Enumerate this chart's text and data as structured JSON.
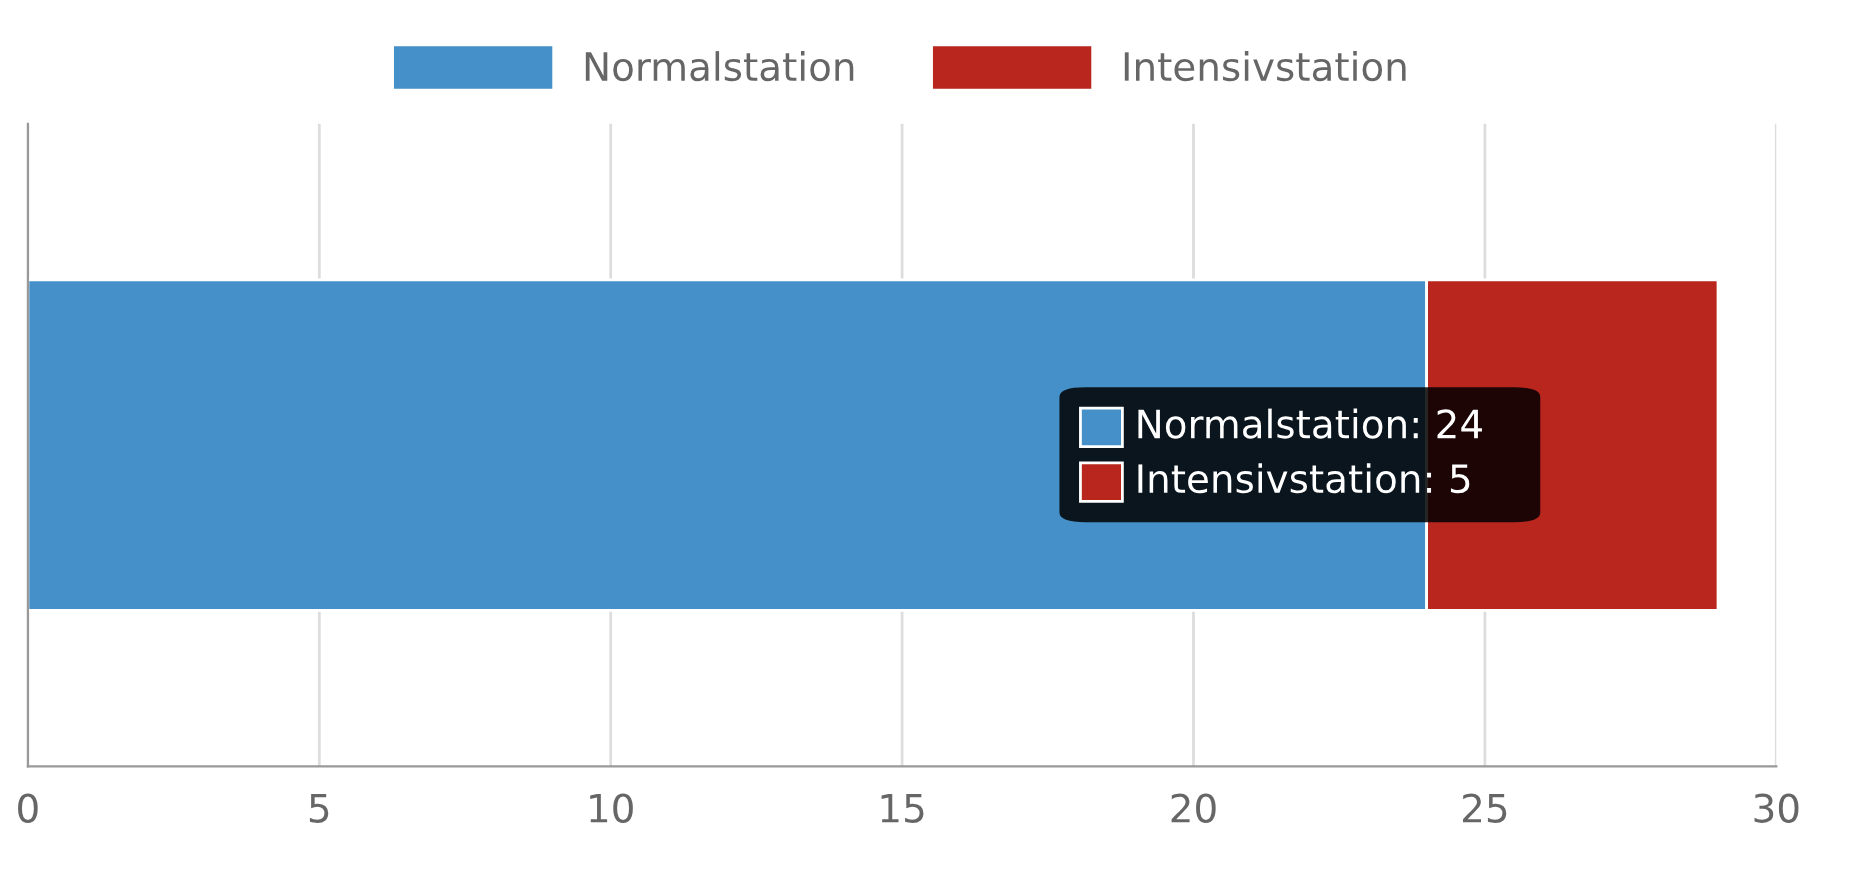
{
  "chart_data": {
    "type": "bar",
    "orientation": "horizontal",
    "stacked": true,
    "categories": [
      null
    ],
    "series": [
      {
        "name": "Normalstation",
        "color": "#4590c8",
        "values": [
          24
        ]
      },
      {
        "name": "Intensivstation",
        "color": "#b8261e",
        "values": [
          5
        ]
      }
    ],
    "xlim": [
      0,
      30
    ],
    "xticks": [
      0,
      5,
      10,
      15,
      20,
      25,
      30
    ],
    "grid": "x",
    "legend": "top",
    "annotations": [
      "Normalstation: 24",
      "Intensivstation: 5"
    ]
  }
}
